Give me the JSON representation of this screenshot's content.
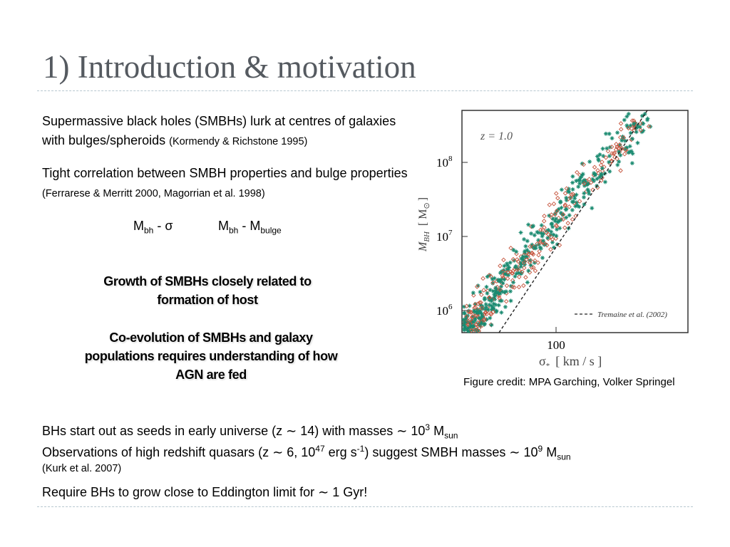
{
  "title": "1) Introduction & motivation",
  "intro": [
    [
      "Supermassive black holes (SMBHs) lurk at centres of galaxies with bulges/spheroids ",
      "(Kormendy & Richstone 1995)"
    ],
    [
      "Tight correlation between SMBH properties and bulge properties ",
      "(Ferrarese & Merritt 2000, Magorrian et al. 1998)"
    ]
  ],
  "relations": [
    [
      "M",
      "bh",
      " - σ"
    ],
    [
      "M",
      "bh",
      " - M",
      "bulge"
    ]
  ],
  "highlights": [
    "Growth of SMBHs closely related to formation of host",
    "Co-evolution of SMBHs and galaxy populations requires understanding of how AGN are fed"
  ],
  "figure": {
    "label": "z = 1.0",
    "yticks": [
      [
        "10",
        "8"
      ],
      [
        "10",
        "7"
      ],
      [
        "10",
        "6"
      ]
    ],
    "xtick": "100",
    "ylabel": [
      "M",
      "BH",
      "[ M",
      "⊙",
      "]"
    ],
    "xlabel": [
      "σ",
      "*",
      "[ km / s ]"
    ],
    "legend": "Tremaine et al. (2002)",
    "credit": "Figure credit:  MPA Garching, Volker Springel"
  },
  "bullets": [
    [
      "BHs start out as seeds in early universe (z ∼ 14) with masses ∼ 10",
      "3",
      " M",
      "sun"
    ],
    [
      "Observations of high redshift quasars (z ∼ 6, 10",
      "47",
      " erg s",
      "-1",
      ") suggest SMBH masses ∼ 10",
      "9",
      " M",
      "sun"
    ],
    [
      "(Kurk et al. 2007)"
    ],
    [
      "Require BHs to grow close to Eddington limit for ∼ 1 Gyr!"
    ]
  ]
}
